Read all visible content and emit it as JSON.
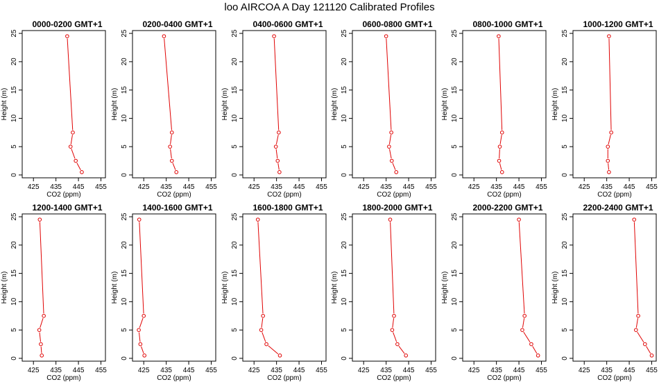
{
  "title": "loo AIRCOA A  Day 121120  Calibrated Profiles",
  "chart_data": [
    {
      "type": "line",
      "title": "0000-0200 GMT+1",
      "xlabel": "CO2 (ppm)",
      "ylabel": "Height (m)",
      "xlim": [
        420,
        457
      ],
      "ylim": [
        -0.5,
        25.5
      ],
      "xticks": [
        425,
        435,
        445,
        455
      ],
      "yticks": [
        0,
        5,
        10,
        15,
        20,
        25
      ],
      "x": [
        446.5,
        443.8,
        441.5,
        442.5,
        440.0
      ],
      "y": [
        0.5,
        2.5,
        5,
        7.5,
        24.5
      ]
    },
    {
      "type": "line",
      "title": "0200-0400 GMT+1",
      "xlabel": "CO2 (ppm)",
      "ylabel": "Height (m)",
      "xlim": [
        420,
        457
      ],
      "ylim": [
        -0.5,
        25.5
      ],
      "xticks": [
        425,
        435,
        445,
        455
      ],
      "yticks": [
        0,
        5,
        10,
        15,
        20,
        25
      ],
      "x": [
        439.5,
        437.5,
        436.7,
        437.5,
        434.0
      ],
      "y": [
        0.5,
        2.5,
        5,
        7.5,
        24.5
      ]
    },
    {
      "type": "line",
      "title": "0400-0600 GMT+1",
      "xlabel": "CO2 (ppm)",
      "ylabel": "Height (m)",
      "xlim": [
        420,
        457
      ],
      "ylim": [
        -0.5,
        25.5
      ],
      "xticks": [
        425,
        435,
        445,
        455
      ],
      "yticks": [
        0,
        5,
        10,
        15,
        20,
        25
      ],
      "x": [
        436.3,
        435.5,
        434.7,
        436.0,
        433.9
      ],
      "y": [
        0.5,
        2.5,
        5,
        7.5,
        24.5
      ]
    },
    {
      "type": "line",
      "title": "0600-0800 GMT+1",
      "xlabel": "CO2 (ppm)",
      "ylabel": "Height (m)",
      "xlim": [
        420,
        457
      ],
      "ylim": [
        -0.5,
        25.5
      ],
      "xticks": [
        425,
        435,
        445,
        455
      ],
      "yticks": [
        0,
        5,
        10,
        15,
        20,
        25
      ],
      "x": [
        439.5,
        437.5,
        436.3,
        437.3,
        435.0
      ],
      "y": [
        0.5,
        2.5,
        5,
        7.5,
        24.5
      ]
    },
    {
      "type": "line",
      "title": "0800-1000 GMT+1",
      "xlabel": "CO2 (ppm)",
      "ylabel": "Height (m)",
      "xlim": [
        420,
        457
      ],
      "ylim": [
        -0.5,
        25.5
      ],
      "xticks": [
        425,
        435,
        445,
        455
      ],
      "yticks": [
        0,
        5,
        10,
        15,
        20,
        25
      ],
      "x": [
        437.5,
        436.2,
        436.5,
        437.5,
        436.0
      ],
      "y": [
        0.5,
        2.5,
        5,
        7.5,
        24.5
      ]
    },
    {
      "type": "line",
      "title": "1000-1200 GMT+1",
      "xlabel": "CO2 (ppm)",
      "ylabel": "Height (m)",
      "xlim": [
        420,
        457
      ],
      "ylim": [
        -0.5,
        25.5
      ],
      "xticks": [
        425,
        435,
        445,
        455
      ],
      "yticks": [
        0,
        5,
        10,
        15,
        20,
        25
      ],
      "x": [
        436.0,
        435.5,
        435.5,
        437.0,
        436.0
      ],
      "y": [
        0.5,
        2.5,
        5,
        7.5,
        24.5
      ]
    },
    {
      "type": "line",
      "title": "1200-1400 GMT+1",
      "xlabel": "CO2 (ppm)",
      "ylabel": "Height (m)",
      "xlim": [
        420,
        457
      ],
      "ylim": [
        -0.5,
        25.5
      ],
      "xticks": [
        425,
        435,
        445,
        455
      ],
      "yticks": [
        0,
        5,
        10,
        15,
        20,
        25
      ],
      "x": [
        428.7,
        428.3,
        427.6,
        429.6,
        427.8
      ],
      "y": [
        0.5,
        2.5,
        5,
        7.5,
        24.5
      ]
    },
    {
      "type": "line",
      "title": "1400-1600 GMT+1",
      "xlabel": "CO2 (ppm)",
      "ylabel": "Height (m)",
      "xlim": [
        420,
        457
      ],
      "ylim": [
        -0.5,
        25.5
      ],
      "xticks": [
        425,
        435,
        445,
        455
      ],
      "yticks": [
        0,
        5,
        10,
        15,
        20,
        25
      ],
      "x": [
        425.3,
        423.5,
        422.8,
        425.0,
        423.0
      ],
      "y": [
        0.5,
        2.5,
        5,
        7.5,
        24.5
      ]
    },
    {
      "type": "line",
      "title": "1600-1800 GMT+1",
      "xlabel": "CO2 (ppm)",
      "ylabel": "Height (m)",
      "xlim": [
        420,
        457
      ],
      "ylim": [
        -0.5,
        25.5
      ],
      "xticks": [
        425,
        435,
        445,
        455
      ],
      "yticks": [
        0,
        5,
        10,
        15,
        20,
        25
      ],
      "x": [
        436.5,
        430.5,
        428.2,
        429.0,
        426.7
      ],
      "y": [
        0.5,
        2.5,
        5,
        7.5,
        24.5
      ]
    },
    {
      "type": "line",
      "title": "1800-2000 GMT+1",
      "xlabel": "CO2 (ppm)",
      "ylabel": "Height (m)",
      "xlim": [
        420,
        457
      ],
      "ylim": [
        -0.5,
        25.5
      ],
      "xticks": [
        425,
        435,
        445,
        455
      ],
      "yticks": [
        0,
        5,
        10,
        15,
        20,
        25
      ],
      "x": [
        443.8,
        440.0,
        437.7,
        438.5,
        436.8
      ],
      "y": [
        0.5,
        2.5,
        5,
        7.5,
        24.5
      ]
    },
    {
      "type": "line",
      "title": "2000-2200 GMT+1",
      "xlabel": "CO2 (ppm)",
      "ylabel": "Height (m)",
      "xlim": [
        420,
        457
      ],
      "ylim": [
        -0.5,
        25.5
      ],
      "xticks": [
        425,
        435,
        445,
        455
      ],
      "yticks": [
        0,
        5,
        10,
        15,
        20,
        25
      ],
      "x": [
        453.5,
        450.5,
        446.5,
        447.5,
        445.0
      ],
      "y": [
        0.5,
        2.5,
        5,
        7.5,
        24.5
      ]
    },
    {
      "type": "line",
      "title": "2200-2400 GMT+1",
      "xlabel": "CO2 (ppm)",
      "ylabel": "Height (m)",
      "xlim": [
        420,
        457
      ],
      "ylim": [
        -0.5,
        25.5
      ],
      "xticks": [
        425,
        435,
        445,
        455
      ],
      "yticks": [
        0,
        5,
        10,
        15,
        20,
        25
      ],
      "x": [
        455.0,
        452.0,
        448.0,
        449.0,
        447.2
      ],
      "y": [
        0.5,
        2.5,
        5,
        7.5,
        24.5
      ]
    }
  ],
  "colors": {
    "series": "#e00000",
    "axis": "#000000",
    "text": "#000000"
  }
}
